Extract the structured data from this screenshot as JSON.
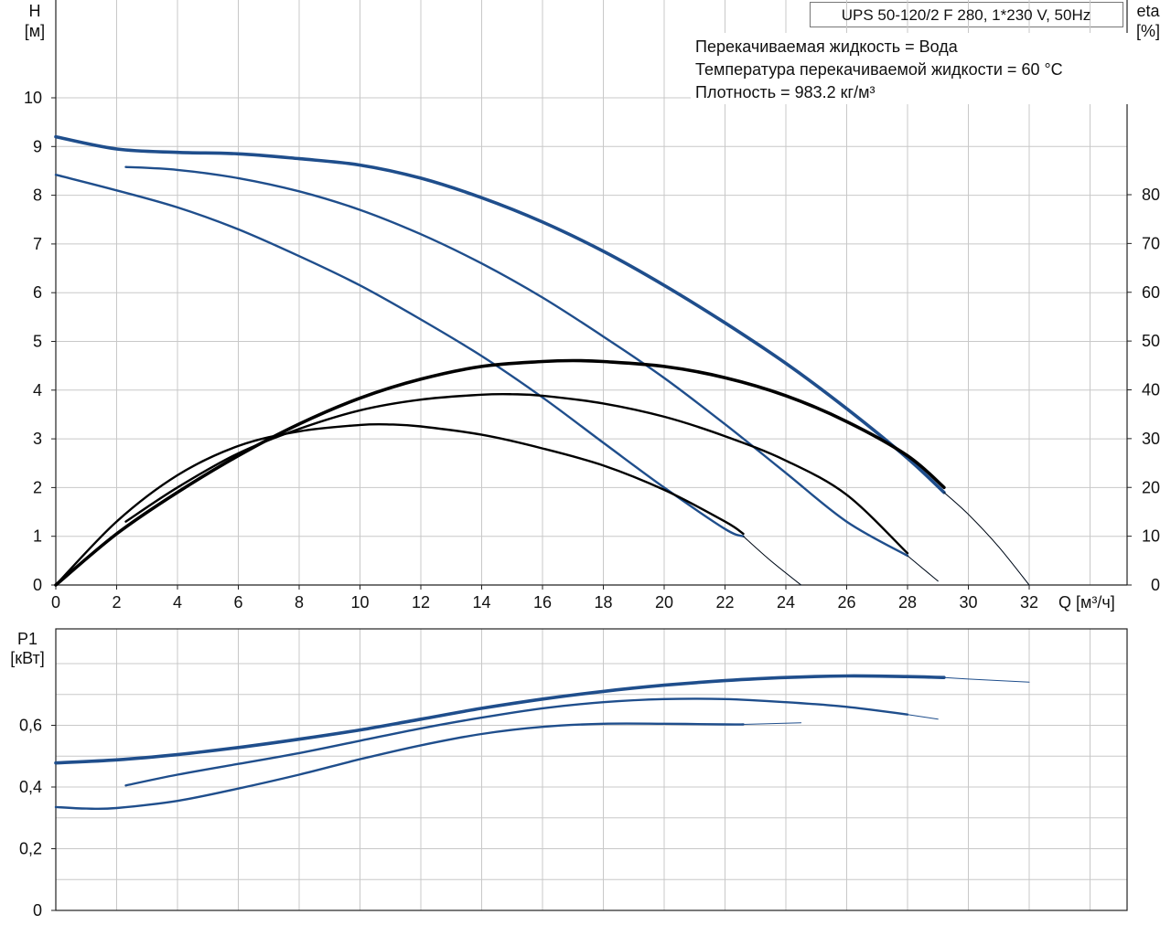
{
  "header": {
    "model": "UPS 50-120/2 F 280, 1*230 V, 50Hz",
    "info_lines": [
      "Перекачиваемая жидкость = Вода",
      "Температура перекачиваемой жидкости = 60 °C",
      "Плотность = 983.2 кг/м³"
    ]
  },
  "colors": {
    "head_curve": "#1f4e8c",
    "power_curve": "#1f4e8c",
    "efficiency_curve": "#000000",
    "grid": "#c8c8c8"
  },
  "chart_data": [
    {
      "type": "line",
      "title": "",
      "ylabel": [
        "H",
        "[м]"
      ],
      "y2label": [
        "eta",
        "[%]"
      ],
      "xlabel": "Q [м³/ч]",
      "xlim": [
        0,
        32
      ],
      "ylim": [
        0,
        10
      ],
      "y2lim": [
        0,
        80
      ],
      "xticks": [
        "0",
        "2",
        "4",
        "6",
        "8",
        "10",
        "12",
        "14",
        "16",
        "18",
        "20",
        "22",
        "24",
        "26",
        "28",
        "30",
        "32"
      ],
      "yticks": [
        "0",
        "1",
        "2",
        "3",
        "4",
        "5",
        "6",
        "7",
        "8",
        "9",
        "10"
      ],
      "y2ticks": [
        "0",
        "10",
        "20",
        "30",
        "40",
        "50",
        "60",
        "70",
        "80"
      ],
      "grid": true,
      "head_series": [
        {
          "speed": 3,
          "points": [
            [
              0,
              9.2
            ],
            [
              2,
              8.95
            ],
            [
              4,
              8.88
            ],
            [
              6,
              8.85
            ],
            [
              8,
              8.75
            ],
            [
              10,
              8.62
            ],
            [
              12,
              8.35
            ],
            [
              14,
              7.95
            ],
            [
              16,
              7.45
            ],
            [
              18,
              6.85
            ],
            [
              20,
              6.15
            ],
            [
              22,
              5.38
            ],
            [
              24,
              4.55
            ],
            [
              26,
              3.62
            ],
            [
              28,
              2.6
            ],
            [
              29.2,
              1.9
            ]
          ],
          "extension": [
            [
              29.2,
              1.9
            ],
            [
              30,
              1.45
            ],
            [
              31,
              0.78
            ],
            [
              32,
              0
            ]
          ]
        },
        {
          "speed": 2,
          "points": [
            [
              2.3,
              8.58
            ],
            [
              4,
              8.52
            ],
            [
              6,
              8.35
            ],
            [
              8,
              8.08
            ],
            [
              10,
              7.7
            ],
            [
              12,
              7.2
            ],
            [
              14,
              6.6
            ],
            [
              16,
              5.9
            ],
            [
              18,
              5.1
            ],
            [
              20,
              4.25
            ],
            [
              22,
              3.3
            ],
            [
              24,
              2.3
            ],
            [
              26,
              1.3
            ],
            [
              28,
              0.6
            ]
          ],
          "extension": [
            [
              28,
              0.6
            ],
            [
              29,
              0.08
            ]
          ]
        },
        {
          "speed": 1,
          "points": [
            [
              0,
              8.42
            ],
            [
              2,
              8.1
            ],
            [
              4,
              7.75
            ],
            [
              6,
              7.3
            ],
            [
              8,
              6.75
            ],
            [
              10,
              6.15
            ],
            [
              12,
              5.45
            ],
            [
              14,
              4.7
            ],
            [
              16,
              3.85
            ],
            [
              18,
              2.92
            ],
            [
              20,
              2.0
            ],
            [
              22,
              1.15
            ],
            [
              22.6,
              1.0
            ]
          ],
          "extension": [
            [
              22.6,
              1.0
            ],
            [
              23.5,
              0.5
            ],
            [
              24.5,
              0
            ]
          ]
        }
      ],
      "efficiency_series": [
        {
          "speed": 3,
          "points": [
            [
              0,
              0
            ],
            [
              2,
              10.5
            ],
            [
              4,
              19
            ],
            [
              6,
              26.5
            ],
            [
              8,
              33
            ],
            [
              10,
              38.3
            ],
            [
              12,
              42.2
            ],
            [
              14,
              44.8
            ],
            [
              16,
              45.8
            ],
            [
              17,
              46
            ],
            [
              18,
              45.8
            ],
            [
              20,
              44.8
            ],
            [
              22,
              42.5
            ],
            [
              24,
              38.8
            ],
            [
              26,
              33.5
            ],
            [
              28,
              26.5
            ],
            [
              29.2,
              20
            ]
          ]
        },
        {
          "speed": 2,
          "points": [
            [
              2.3,
              13
            ],
            [
              4,
              20
            ],
            [
              6,
              27
            ],
            [
              8,
              32
            ],
            [
              10,
              35.8
            ],
            [
              12,
              38
            ],
            [
              14,
              39
            ],
            [
              15,
              39.1
            ],
            [
              16,
              38.8
            ],
            [
              18,
              37.2
            ],
            [
              20,
              34.5
            ],
            [
              22,
              30.5
            ],
            [
              24,
              25.5
            ],
            [
              26,
              18.5
            ],
            [
              28,
              6.5
            ]
          ]
        },
        {
          "speed": 1,
          "points": [
            [
              0,
              0
            ],
            [
              2,
              13
            ],
            [
              4,
              22.5
            ],
            [
              6,
              28.5
            ],
            [
              8,
              31.5
            ],
            [
              10,
              32.8
            ],
            [
              11,
              32.9
            ],
            [
              12,
              32.5
            ],
            [
              14,
              30.8
            ],
            [
              16,
              28
            ],
            [
              18,
              24.5
            ],
            [
              20,
              19.5
            ],
            [
              22,
              13
            ],
            [
              22.6,
              10.5
            ]
          ]
        }
      ]
    },
    {
      "type": "line",
      "title": "",
      "ylabel": [
        "P1",
        "[кВт]"
      ],
      "xlim": [
        0,
        32
      ],
      "ylim": [
        0,
        0.8
      ],
      "yticks": [
        "0",
        "0,2",
        "0,4",
        "0,6"
      ],
      "grid": true,
      "power_series": [
        {
          "speed": 3,
          "points": [
            [
              0,
              0.478
            ],
            [
              2,
              0.488
            ],
            [
              4,
              0.505
            ],
            [
              6,
              0.528
            ],
            [
              8,
              0.555
            ],
            [
              10,
              0.585
            ],
            [
              12,
              0.62
            ],
            [
              14,
              0.655
            ],
            [
              16,
              0.685
            ],
            [
              18,
              0.71
            ],
            [
              20,
              0.73
            ],
            [
              22,
              0.745
            ],
            [
              24,
              0.755
            ],
            [
              26,
              0.76
            ],
            [
              28,
              0.758
            ],
            [
              29.2,
              0.755
            ]
          ],
          "extension": [
            [
              29.2,
              0.755
            ],
            [
              30,
              0.75
            ],
            [
              32,
              0.74
            ]
          ]
        },
        {
          "speed": 2,
          "points": [
            [
              2.3,
              0.405
            ],
            [
              4,
              0.44
            ],
            [
              6,
              0.475
            ],
            [
              8,
              0.51
            ],
            [
              10,
              0.55
            ],
            [
              12,
              0.59
            ],
            [
              14,
              0.625
            ],
            [
              16,
              0.655
            ],
            [
              18,
              0.675
            ],
            [
              20,
              0.685
            ],
            [
              22,
              0.685
            ],
            [
              24,
              0.675
            ],
            [
              26,
              0.66
            ],
            [
              28,
              0.635
            ]
          ],
          "extension": [
            [
              28,
              0.635
            ],
            [
              29,
              0.62
            ]
          ]
        },
        {
          "speed": 1,
          "points": [
            [
              0,
              0.335
            ],
            [
              1,
              0.33
            ],
            [
              2,
              0.332
            ],
            [
              4,
              0.355
            ],
            [
              6,
              0.395
            ],
            [
              8,
              0.44
            ],
            [
              10,
              0.49
            ],
            [
              12,
              0.535
            ],
            [
              14,
              0.572
            ],
            [
              16,
              0.595
            ],
            [
              18,
              0.605
            ],
            [
              20,
              0.605
            ],
            [
              22,
              0.603
            ],
            [
              22.6,
              0.603
            ]
          ],
          "extension": [
            [
              22.6,
              0.603
            ],
            [
              24.5,
              0.608
            ]
          ]
        }
      ]
    }
  ]
}
